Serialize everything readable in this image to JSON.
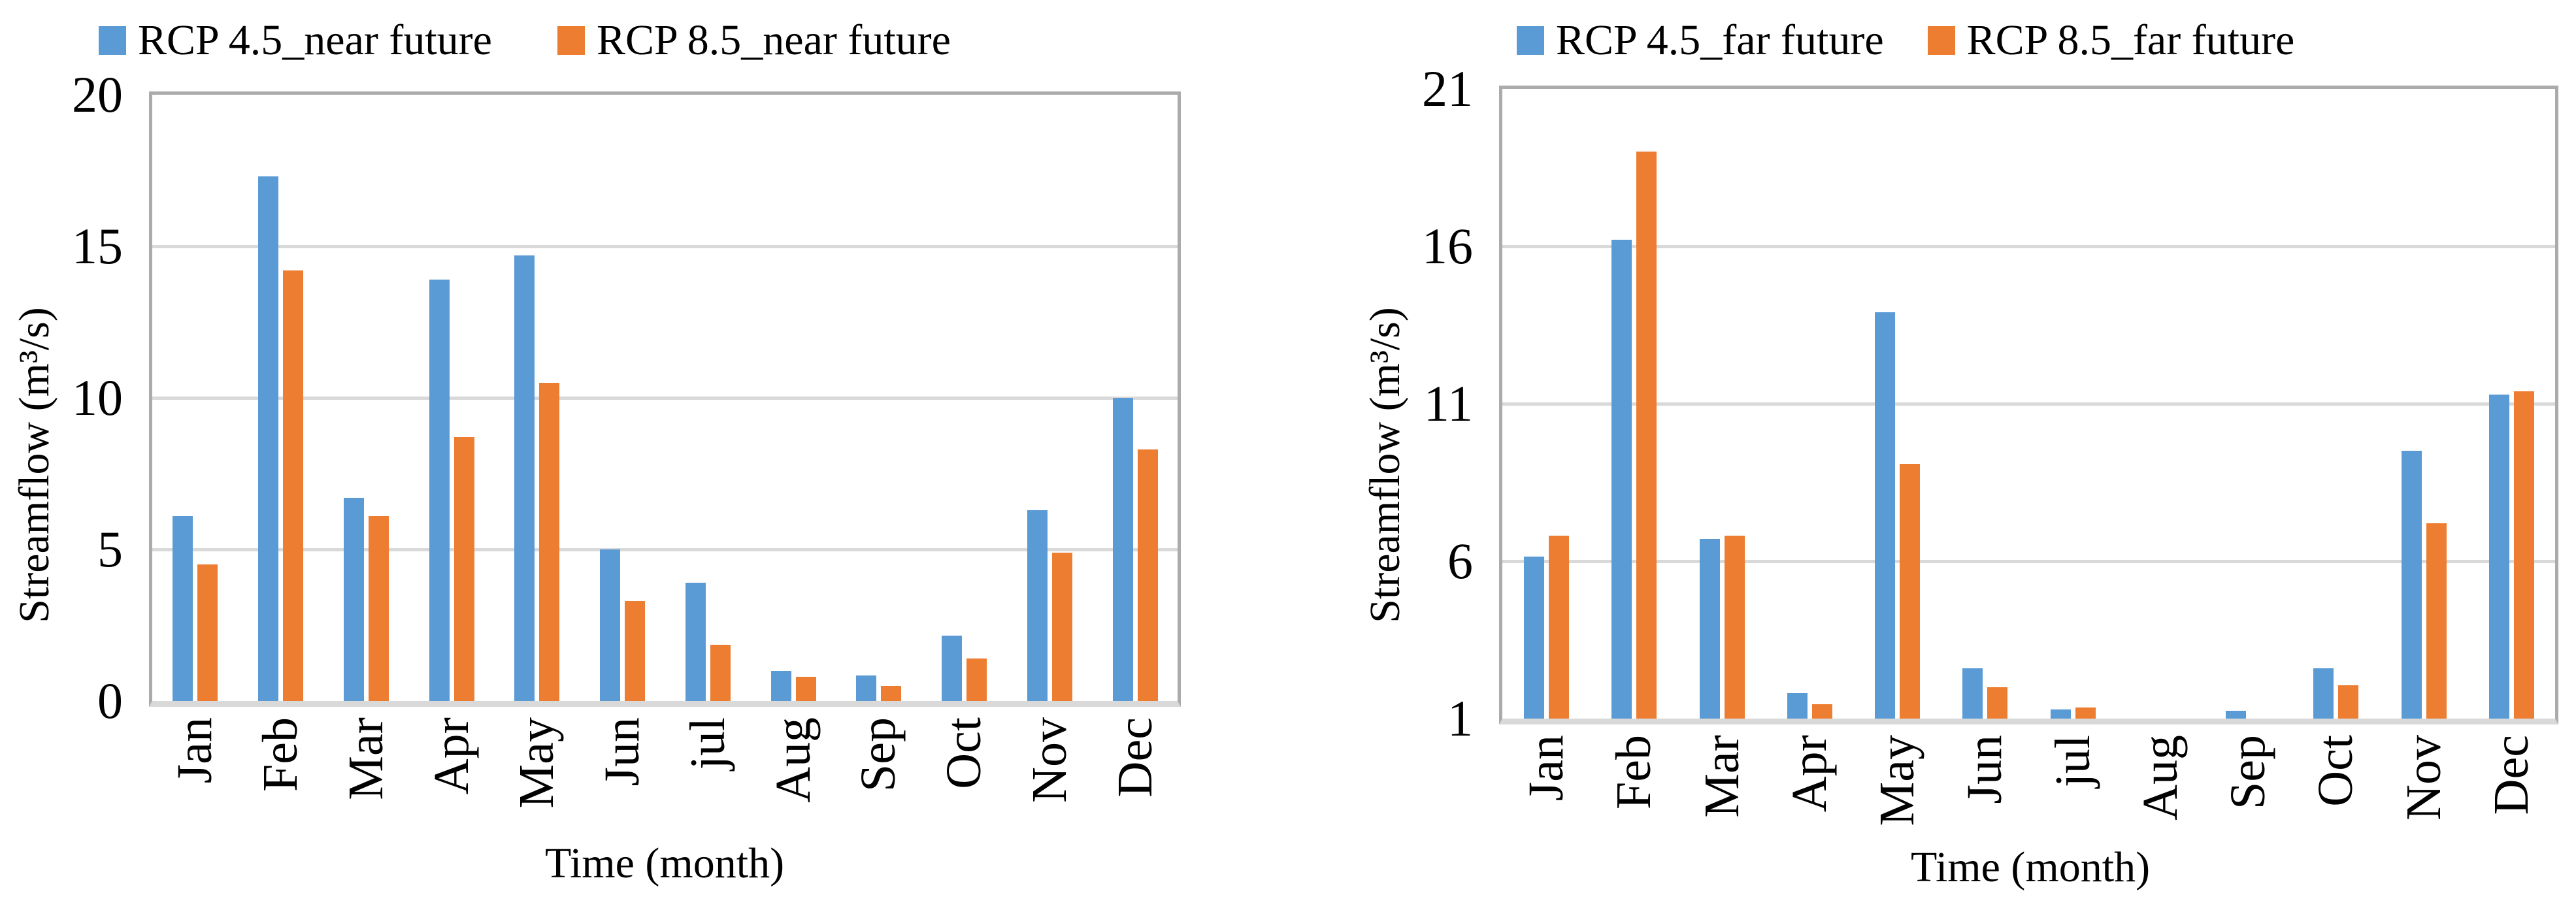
{
  "page": {
    "background": "#ffffff"
  },
  "chart_data": [
    {
      "type": "bar",
      "panel": "left",
      "legend_position": "top",
      "grid": true,
      "categories": [
        "Jan",
        "Feb",
        "Mar",
        "Apr",
        "May",
        "Jun",
        "jul",
        "Aug",
        "Sep",
        "Oct",
        "Nov",
        "Dec"
      ],
      "series": [
        {
          "name": "RCP 4.5_near future",
          "color": "#5B9BD5",
          "values": [
            6.1,
            17.3,
            6.7,
            13.9,
            14.7,
            5.0,
            3.9,
            1.0,
            0.85,
            2.15,
            6.3,
            10.0
          ]
        },
        {
          "name": "RCP 8.5_near future",
          "color": "#ED7D31",
          "values": [
            4.5,
            14.2,
            6.1,
            8.7,
            10.5,
            3.3,
            1.85,
            0.8,
            0.5,
            1.4,
            4.9,
            8.3
          ]
        }
      ],
      "xlabel": "Time (month)",
      "ylabel": "Streamflow (m³/s)",
      "ylim": [
        0,
        20
      ],
      "yticks": [
        0,
        5,
        10,
        15,
        20
      ]
    },
    {
      "type": "bar",
      "panel": "right",
      "legend_position": "top",
      "grid": true,
      "categories": [
        "Jan",
        "Feb",
        "Mar",
        "Apr",
        "May",
        "Jun",
        "jul",
        "Aug",
        "Sep",
        "Oct",
        "Nov",
        "Dec"
      ],
      "series": [
        {
          "name": "RCP 4.5_far future",
          "color": "#5B9BD5",
          "values": [
            6.15,
            16.2,
            6.7,
            1.8,
            13.9,
            2.6,
            1.3,
            1.0,
            1.25,
            2.6,
            9.5,
            11.3
          ]
        },
        {
          "name": "RCP 8.5_far future",
          "color": "#ED7D31",
          "values": [
            6.8,
            19.0,
            6.8,
            1.45,
            9.1,
            2.0,
            1.35,
            1.0,
            1.0,
            2.05,
            7.2,
            11.4
          ]
        }
      ],
      "xlabel": "Time (month)",
      "ylabel": "Streamflow (m³/s)",
      "ylim": [
        1,
        21
      ],
      "yticks": [
        1,
        6,
        11,
        16,
        21
      ]
    }
  ],
  "style": {
    "gridline_color": "#D9D9D9",
    "plot_border_color": "#ABABAB",
    "axis_line_color": "#D9D9D9",
    "text_color": "#000000"
  }
}
